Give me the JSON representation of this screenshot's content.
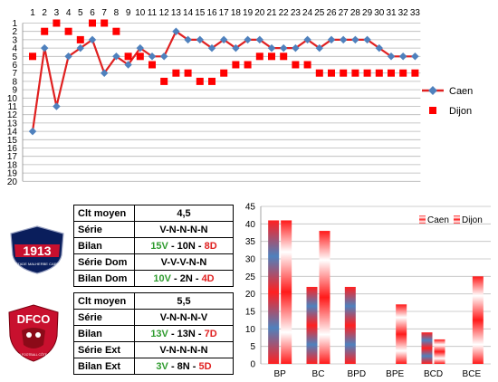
{
  "colors": {
    "caen": "#4f81bd",
    "dijon": "#ff0000",
    "caen_line": "#e02020",
    "win": "#2e9b2e",
    "loss": "#e02020"
  },
  "chart_data": [
    {
      "type": "line",
      "title": "",
      "x": [
        1,
        2,
        3,
        4,
        5,
        6,
        7,
        8,
        9,
        10,
        11,
        12,
        13,
        14,
        15,
        16,
        17,
        18,
        19,
        20,
        21,
        22,
        23,
        24,
        25,
        26,
        27,
        28,
        29,
        30,
        31,
        32,
        33
      ],
      "x_ticks": [
        "1",
        "2",
        "3",
        "4",
        "5",
        "6",
        "7",
        "8",
        "9",
        "10",
        "11",
        "12",
        "13",
        "14",
        "15",
        "16",
        "17",
        "18",
        "19",
        "20",
        "21",
        "22",
        "23",
        "24",
        "25",
        "26",
        "27",
        "28",
        "29",
        "30",
        "31",
        "32",
        "33"
      ],
      "y_ticks": [
        "1",
        "2",
        "3",
        "4",
        "5",
        "6",
        "7",
        "8",
        "9",
        "10",
        "11",
        "12",
        "13",
        "14",
        "15",
        "16",
        "17",
        "18",
        "19",
        "20"
      ],
      "ylim": [
        20,
        1
      ],
      "y_inverted": true,
      "grid": true,
      "legend": "right",
      "series": [
        {
          "name": "Caen",
          "style": "line-marker",
          "values": [
            14,
            4,
            11,
            5,
            4,
            3,
            7,
            5,
            6,
            4,
            5,
            5,
            2,
            3,
            3,
            4,
            3,
            4,
            3,
            3,
            4,
            4,
            4,
            3,
            4,
            3,
            3,
            3,
            3,
            4,
            5,
            5,
            5
          ]
        },
        {
          "name": "Dijon",
          "style": "marker",
          "values": [
            5,
            2,
            1,
            2,
            3,
            1,
            1,
            2,
            5,
            5,
            6,
            8,
            7,
            7,
            8,
            8,
            7,
            6,
            6,
            5,
            5,
            5,
            6,
            6,
            7,
            7,
            7,
            7,
            7,
            7,
            7,
            7,
            7
          ]
        }
      ]
    },
    {
      "type": "bar",
      "title": "",
      "categories": [
        "BP",
        "BC",
        "BPD",
        "BPE",
        "BCD",
        "BCE"
      ],
      "y_ticks": [
        "0",
        "5",
        "10",
        "15",
        "20",
        "25",
        "30",
        "35",
        "40",
        "45"
      ],
      "ylim": [
        0,
        45
      ],
      "grid": true,
      "legend": "top-right",
      "series": [
        {
          "name": "Caen",
          "values": [
            41,
            22,
            22,
            0,
            9,
            0
          ]
        },
        {
          "name": "Dijon",
          "values": [
            41,
            38,
            0,
            17,
            7,
            25
          ]
        }
      ]
    }
  ],
  "tables": [
    {
      "team": "caen",
      "rows": [
        {
          "label": "Clt moyen",
          "parts": [
            {
              "text": "4,5",
              "tone": "k"
            }
          ]
        },
        {
          "label": "Série",
          "parts": [
            {
              "text": "V-N-N-N-N",
              "tone": "k"
            }
          ]
        },
        {
          "label": "Bilan",
          "parts": [
            {
              "text": "15V",
              "tone": "g"
            },
            {
              "text": " - 10N - ",
              "tone": "k"
            },
            {
              "text": "8D",
              "tone": "r"
            }
          ]
        },
        {
          "label": "Série Dom",
          "parts": [
            {
              "text": "V-V-V-N-N",
              "tone": "k"
            }
          ]
        },
        {
          "label": "Bilan Dom",
          "parts": [
            {
              "text": "10V",
              "tone": "g"
            },
            {
              "text": " - 2N - ",
              "tone": "k"
            },
            {
              "text": "4D",
              "tone": "r"
            }
          ]
        }
      ]
    },
    {
      "team": "dijon",
      "rows": [
        {
          "label": "Clt moyen",
          "parts": [
            {
              "text": "5,5",
              "tone": "k"
            }
          ]
        },
        {
          "label": "Série",
          "parts": [
            {
              "text": "V-N-N-N-V",
              "tone": "k"
            }
          ]
        },
        {
          "label": "Bilan",
          "parts": [
            {
              "text": "13V",
              "tone": "g"
            },
            {
              "text": " - 13N - ",
              "tone": "k"
            },
            {
              "text": "7D",
              "tone": "r"
            }
          ]
        },
        {
          "label": "Série Ext",
          "parts": [
            {
              "text": "V-N-N-N-N",
              "tone": "k"
            }
          ]
        },
        {
          "label": "Bilan Ext",
          "parts": [
            {
              "text": "3V",
              "tone": "g"
            },
            {
              "text": " - 8N - ",
              "tone": "k"
            },
            {
              "text": "5D",
              "tone": "r"
            }
          ]
        }
      ]
    }
  ],
  "crests": {
    "caen": {
      "year": "1913",
      "motto": "STADE MALHERBE CAEN"
    },
    "dijon": {
      "initials": "DFCO",
      "motto": "DIJON FOOTBALL CÔTE D'OR"
    }
  }
}
